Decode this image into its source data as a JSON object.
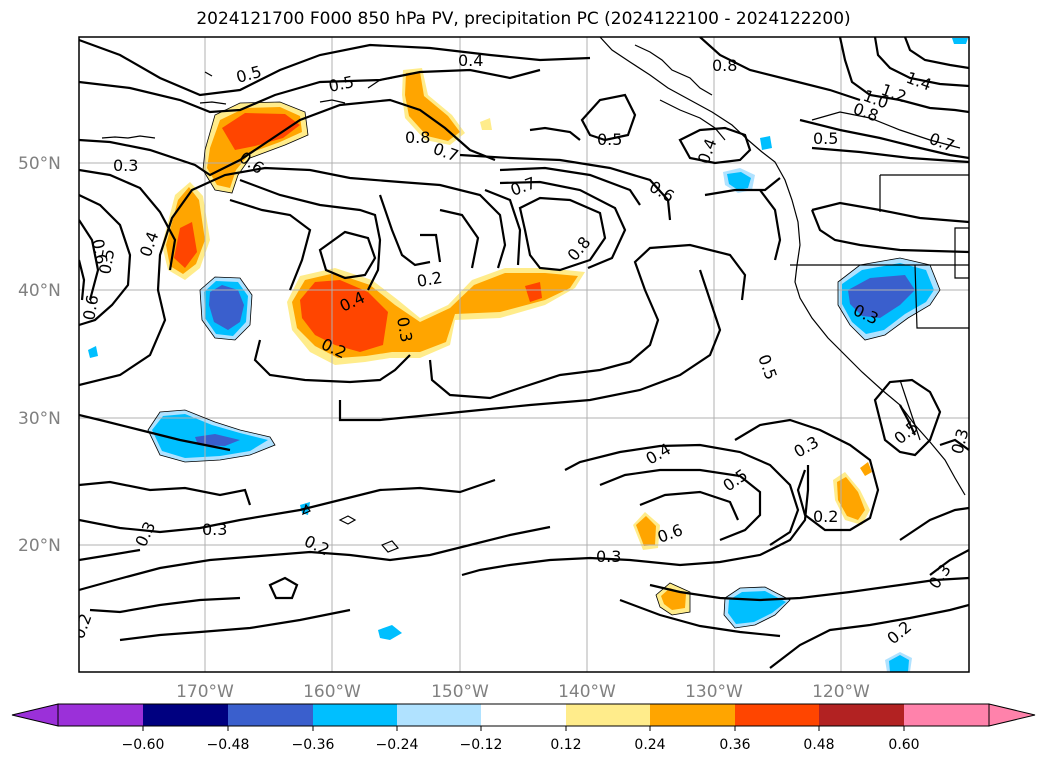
{
  "title": "2024121700 F000 850 hPa PV, precipitation PC (2024122100 - 2024122200)",
  "map": {
    "lat_ticks": [
      "50°N",
      "40°N",
      "30°N",
      "20°N"
    ],
    "lon_ticks": [
      "170°W",
      "160°W",
      "150°W",
      "140°W",
      "130°W",
      "120°W"
    ],
    "contour_labels": [
      "0.5",
      "0.5",
      "0.4",
      "0.8",
      "1.4",
      "1.2",
      "1.0",
      "0.8",
      "0.7",
      "0.5",
      "0.5",
      "0.4",
      "0.3",
      "0.6",
      "0.8",
      "0.7",
      "0.5",
      "0.6",
      "0.7",
      "0.6",
      "0.5",
      "0.4",
      "0.6",
      "0.2",
      "0.4",
      "0.3",
      "0.2",
      "0.8",
      "0.3",
      "0.5",
      "0.3",
      "0.3",
      "0.4",
      "0.5",
      "0.6",
      "0.3",
      "0.2",
      "0.3",
      "0.2",
      "0.3",
      "0.2",
      "0.3",
      "0.2"
    ]
  },
  "colorbar": {
    "ticks": [
      "−0.60",
      "−0.48",
      "−0.36",
      "−0.24",
      "−0.12",
      "0.12",
      "0.24",
      "0.36",
      "0.48",
      "0.60"
    ],
    "colors": [
      "#9b30d9",
      "#000080",
      "#3a5fcd",
      "#00bfff",
      "#b0e2ff",
      "#ffffff",
      "#ffec8b",
      "#ffa500",
      "#ff4500",
      "#b22222",
      "#ff82ab"
    ]
  }
}
